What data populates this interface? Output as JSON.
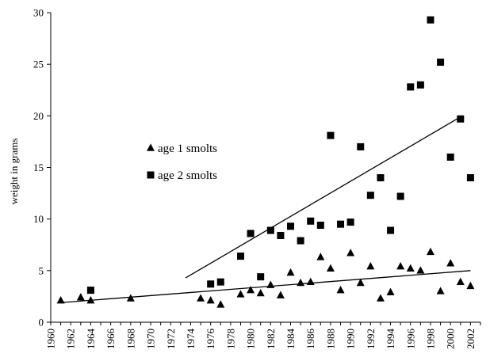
{
  "chart_data": {
    "type": "scatter",
    "title": "",
    "xlabel": "",
    "ylabel": "weight in grams",
    "xlim": [
      1960,
      2003
    ],
    "ylim": [
      0,
      30
    ],
    "x_ticks": [
      1960,
      1962,
      1964,
      1966,
      1968,
      1970,
      1972,
      1974,
      1976,
      1978,
      1980,
      1982,
      1984,
      1986,
      1988,
      1990,
      1992,
      1994,
      1996,
      1998,
      2000,
      2002
    ],
    "y_ticks": [
      0,
      5,
      10,
      15,
      20,
      25,
      30
    ],
    "grid": false,
    "legend_position": "center-left",
    "series": [
      {
        "name": "age 1 smolts",
        "marker": "triangle",
        "color": "#000000",
        "points": [
          [
            1961,
            2.1
          ],
          [
            1963,
            2.4
          ],
          [
            1964,
            2.1
          ],
          [
            1968,
            2.3
          ],
          [
            1975,
            2.3
          ],
          [
            1976,
            2.1
          ],
          [
            1977,
            1.7
          ],
          [
            1979,
            2.7
          ],
          [
            1980,
            3.1
          ],
          [
            1981,
            2.8
          ],
          [
            1982,
            3.6
          ],
          [
            1983,
            2.6
          ],
          [
            1984,
            4.8
          ],
          [
            1985,
            3.8
          ],
          [
            1986,
            3.9
          ],
          [
            1987,
            6.3
          ],
          [
            1988,
            5.2
          ],
          [
            1989,
            3.1
          ],
          [
            1990,
            6.7
          ],
          [
            1991,
            3.8
          ],
          [
            1992,
            5.4
          ],
          [
            1993,
            2.3
          ],
          [
            1994,
            2.9
          ],
          [
            1995,
            5.4
          ],
          [
            1996,
            5.2
          ],
          [
            1997,
            5.0
          ],
          [
            1998,
            6.8
          ],
          [
            1999,
            3.0
          ],
          [
            2000,
            5.7
          ],
          [
            2001,
            3.9
          ],
          [
            2002,
            3.5
          ]
        ],
        "trendline": [
          [
            1961,
            1.9
          ],
          [
            2002,
            5.0
          ]
        ]
      },
      {
        "name": "age 2 smolts",
        "marker": "square",
        "color": "#000000",
        "points": [
          [
            1964,
            3.1
          ],
          [
            1976,
            3.7
          ],
          [
            1977,
            3.9
          ],
          [
            1979,
            6.4
          ],
          [
            1980,
            8.6
          ],
          [
            1981,
            4.4
          ],
          [
            1982,
            8.9
          ],
          [
            1983,
            8.4
          ],
          [
            1984,
            9.3
          ],
          [
            1985,
            7.9
          ],
          [
            1986,
            9.8
          ],
          [
            1987,
            9.4
          ],
          [
            1988,
            18.1
          ],
          [
            1989,
            9.5
          ],
          [
            1990,
            9.7
          ],
          [
            1991,
            17.0
          ],
          [
            1992,
            12.3
          ],
          [
            1993,
            14.0
          ],
          [
            1994,
            8.9
          ],
          [
            1995,
            12.2
          ],
          [
            1996,
            22.8
          ],
          [
            1997,
            23.0
          ],
          [
            1998,
            29.3
          ],
          [
            1999,
            25.2
          ],
          [
            2000,
            16.0
          ],
          [
            2001,
            19.7
          ],
          [
            2002,
            14.0
          ]
        ],
        "trendline": [
          [
            1973.5,
            4.3
          ],
          [
            2001,
            19.9
          ]
        ]
      }
    ]
  }
}
